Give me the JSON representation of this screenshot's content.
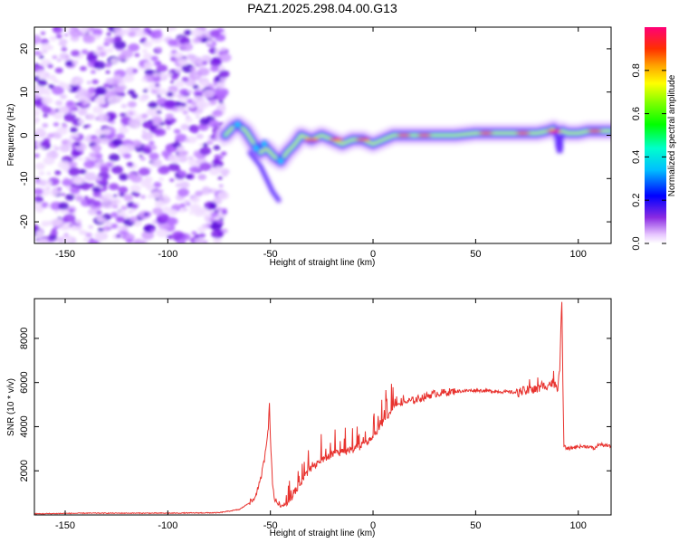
{
  "title": "PAZ1.2025.298.04.00.G13",
  "chart_data": [
    {
      "type": "heatmap",
      "name": "spectrogram",
      "xlabel": "Height of straight line (km)",
      "ylabel": "Frequency (Hz)",
      "xlim": [
        -165,
        116
      ],
      "ylim": [
        -25,
        25
      ],
      "xticks": [
        -150,
        -100,
        -50,
        0,
        50,
        100
      ],
      "yticks": [
        -20,
        -10,
        0,
        10,
        20
      ],
      "noise_region_x": [
        -165,
        -72
      ],
      "ridge": {
        "x": [
          -72,
          -68,
          -66,
          -62,
          -58,
          -55,
          -52,
          -50,
          -48,
          -45,
          -42,
          -38,
          -35,
          -30,
          -25,
          -20,
          -15,
          -10,
          -5,
          0,
          5,
          10,
          20,
          30,
          40,
          50,
          60,
          70,
          80,
          85,
          88,
          90,
          92,
          95,
          100,
          105,
          110,
          116
        ],
        "freq": [
          0,
          2,
          2.5,
          1,
          -2,
          -4,
          -3,
          -4,
          -5,
          -6,
          -4,
          -2,
          0,
          -1,
          0,
          -1,
          -2,
          -1,
          -1,
          -2,
          -1,
          0,
          0,
          0,
          0,
          0.5,
          0.5,
          0.5,
          0.5,
          1,
          1.5,
          0.5,
          1,
          0.5,
          0.5,
          1,
          1,
          1
        ]
      }
    },
    {
      "type": "colorbar",
      "name": "amplitude-colorbar",
      "label": "Normalized spectral amplitude",
      "range": [
        0,
        1
      ],
      "ticks": [
        "0.0",
        "0.2",
        "0.4",
        "0.6",
        "0.8"
      ]
    },
    {
      "type": "line",
      "name": "snr",
      "xlabel": "Height of straight line (km)",
      "ylabel": "SNR (10 * v/v)",
      "xlim": [
        -165,
        116
      ],
      "ylim": [
        0,
        9800
      ],
      "xticks": [
        -150,
        -100,
        -50,
        0,
        50,
        100
      ],
      "yticks": [
        2000,
        4000,
        6000,
        8000
      ],
      "color": "#e8322e",
      "anchors": {
        "x": [
          -165,
          -140,
          -100,
          -75,
          -65,
          -58,
          -55,
          -53,
          -51,
          -50.5,
          -50,
          -49,
          -48,
          -46,
          -44,
          -42,
          -40,
          -35,
          -30,
          -25,
          -20,
          -15,
          -10,
          -5,
          0,
          5,
          10,
          20,
          30,
          40,
          50,
          60,
          70,
          80,
          85,
          88,
          90,
          91,
          91.5,
          92,
          92.5,
          93,
          95,
          100,
          105,
          108,
          110,
          116
        ],
        "snr": [
          50,
          80,
          80,
          100,
          250,
          700,
          1500,
          2500,
          4000,
          5000,
          3500,
          1500,
          700,
          500,
          450,
          600,
          900,
          1700,
          2300,
          2600,
          2900,
          3000,
          3100,
          3300,
          3700,
          4400,
          5000,
          5200,
          5500,
          5600,
          5650,
          5600,
          5550,
          5700,
          5900,
          6000,
          5800,
          6500,
          8500,
          9700,
          6000,
          3100,
          3000,
          3100,
          3100,
          3000,
          3200,
          3100
        ]
      }
    }
  ]
}
